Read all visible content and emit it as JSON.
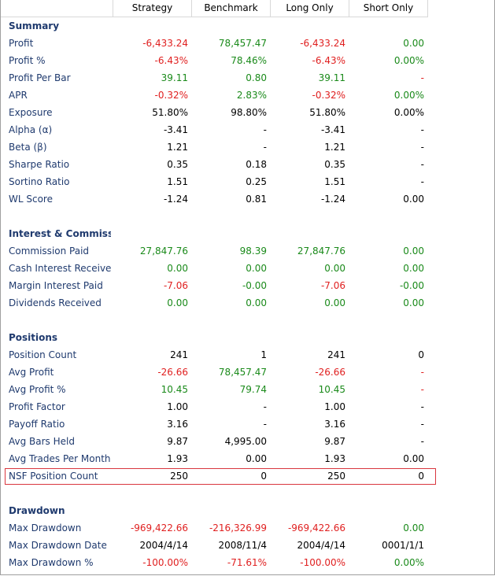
{
  "header": {
    "columns": [
      "Strategy",
      "Benchmark",
      "Long Only",
      "Short Only"
    ]
  },
  "sections": [
    {
      "title": "Summary",
      "rows": [
        {
          "label": "Profit",
          "values": [
            "-6,433.24",
            "78,457.47",
            "-6,433.24",
            "0.00"
          ],
          "colors": [
            "red",
            "green",
            "red",
            "green"
          ]
        },
        {
          "label": "Profit %",
          "values": [
            "-6.43%",
            "78.46%",
            "-6.43%",
            "0.00%"
          ],
          "colors": [
            "red",
            "green",
            "red",
            "green"
          ]
        },
        {
          "label": "Profit Per Bar",
          "values": [
            "39.11",
            "0.80",
            "39.11",
            "-"
          ],
          "colors": [
            "green",
            "green",
            "green",
            "red"
          ]
        },
        {
          "label": "APR",
          "values": [
            "-0.32%",
            "2.83%",
            "-0.32%",
            "0.00%"
          ],
          "colors": [
            "red",
            "green",
            "red",
            "green"
          ]
        },
        {
          "label": "Exposure",
          "values": [
            "51.80%",
            "98.80%",
            "51.80%",
            "0.00%"
          ],
          "colors": [
            "black",
            "black",
            "black",
            "black"
          ]
        },
        {
          "label": "Alpha (α)",
          "values": [
            "-3.41",
            "-",
            "-3.41",
            "-"
          ],
          "colors": [
            "black",
            "black",
            "black",
            "black"
          ]
        },
        {
          "label": "Beta (β)",
          "values": [
            "1.21",
            "-",
            "1.21",
            "-"
          ],
          "colors": [
            "black",
            "black",
            "black",
            "black"
          ]
        },
        {
          "label": "Sharpe Ratio",
          "values": [
            "0.35",
            "0.18",
            "0.35",
            "-"
          ],
          "colors": [
            "black",
            "black",
            "black",
            "black"
          ]
        },
        {
          "label": "Sortino Ratio",
          "values": [
            "1.51",
            "0.25",
            "1.51",
            "-"
          ],
          "colors": [
            "black",
            "black",
            "black",
            "black"
          ]
        },
        {
          "label": "WL Score",
          "values": [
            "-1.24",
            "0.81",
            "-1.24",
            "0.00"
          ],
          "colors": [
            "black",
            "black",
            "black",
            "black"
          ]
        }
      ]
    },
    {
      "title": "Interest & Commissions",
      "rows": [
        {
          "label": "Commission Paid",
          "values": [
            "27,847.76",
            "98.39",
            "27,847.76",
            "0.00"
          ],
          "colors": [
            "green",
            "green",
            "green",
            "green"
          ]
        },
        {
          "label": "Cash Interest Received",
          "values": [
            "0.00",
            "0.00",
            "0.00",
            "0.00"
          ],
          "colors": [
            "green",
            "green",
            "green",
            "green"
          ]
        },
        {
          "label": "Margin Interest Paid",
          "values": [
            "-7.06",
            "-0.00",
            "-7.06",
            "-0.00"
          ],
          "colors": [
            "red",
            "green",
            "red",
            "green"
          ]
        },
        {
          "label": "Dividends Received",
          "values": [
            "0.00",
            "0.00",
            "0.00",
            "0.00"
          ],
          "colors": [
            "green",
            "green",
            "green",
            "green"
          ]
        }
      ]
    },
    {
      "title": "Positions",
      "rows": [
        {
          "label": "Position Count",
          "values": [
            "241",
            "1",
            "241",
            "0"
          ],
          "colors": [
            "black",
            "black",
            "black",
            "black"
          ]
        },
        {
          "label": "Avg Profit",
          "values": [
            "-26.66",
            "78,457.47",
            "-26.66",
            "-"
          ],
          "colors": [
            "red",
            "green",
            "red",
            "red"
          ]
        },
        {
          "label": "Avg Profit %",
          "values": [
            "10.45",
            "79.74",
            "10.45",
            "-"
          ],
          "colors": [
            "green",
            "green",
            "green",
            "red"
          ]
        },
        {
          "label": "Profit Factor",
          "values": [
            "1.00",
            "-",
            "1.00",
            "-"
          ],
          "colors": [
            "black",
            "black",
            "black",
            "black"
          ]
        },
        {
          "label": "Payoff Ratio",
          "values": [
            "3.16",
            "-",
            "3.16",
            "-"
          ],
          "colors": [
            "black",
            "black",
            "black",
            "black"
          ]
        },
        {
          "label": "Avg Bars Held",
          "values": [
            "9.87",
            "4,995.00",
            "9.87",
            "-"
          ],
          "colors": [
            "black",
            "black",
            "black",
            "black"
          ]
        },
        {
          "label": "Avg Trades Per Month",
          "values": [
            "1.93",
            "0.00",
            "1.93",
            "0.00"
          ],
          "colors": [
            "black",
            "black",
            "black",
            "black"
          ]
        },
        {
          "label": "NSF Position Count",
          "values": [
            "250",
            "0",
            "250",
            "0"
          ],
          "colors": [
            "black",
            "black",
            "black",
            "black"
          ],
          "highlighted": true
        }
      ]
    },
    {
      "title": "Drawdown",
      "rows": [
        {
          "label": "Max Drawdown",
          "values": [
            "-969,422.66",
            "-216,326.99",
            "-969,422.66",
            "0.00"
          ],
          "colors": [
            "red",
            "red",
            "red",
            "green"
          ]
        },
        {
          "label": "Max Drawdown Date",
          "values": [
            "2004/4/14",
            "2008/11/4",
            "2004/4/14",
            "0001/1/1"
          ],
          "colors": [
            "black",
            "black",
            "black",
            "black"
          ]
        },
        {
          "label": "Max Drawdown %",
          "values": [
            "-100.00%",
            "-71.61%",
            "-100.00%",
            "0.00%"
          ],
          "colors": [
            "red",
            "red",
            "red",
            "green"
          ]
        }
      ]
    }
  ]
}
